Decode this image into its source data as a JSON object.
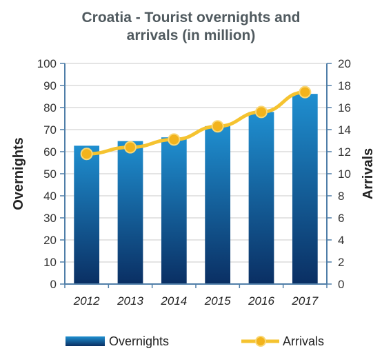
{
  "chart_data": {
    "type": "bar",
    "title_lines": [
      "Croatia - Tourist overnights and",
      "arrivals (in million)"
    ],
    "categories": [
      "2012",
      "2013",
      "2014",
      "2015",
      "2016",
      "2017"
    ],
    "series": [
      {
        "name": "Overnights",
        "type": "bar",
        "axis": "left",
        "values": [
          62.7,
          64.8,
          66.5,
          71.6,
          78.0,
          86.2
        ]
      },
      {
        "name": "Arrivals",
        "type": "line",
        "axis": "right",
        "values": [
          11.8,
          12.4,
          13.1,
          14.3,
          15.6,
          17.4
        ]
      }
    ],
    "ylabel": "Overnights",
    "ylabel_right": "Arrivals",
    "ylim": [
      0,
      100
    ],
    "ylim_right": [
      0,
      20
    ],
    "yticks": [
      "0",
      "10",
      "20",
      "30",
      "40",
      "50",
      "60",
      "70",
      "80",
      "90",
      "100"
    ],
    "yticks_right": [
      "0",
      "2",
      "4",
      "6",
      "8",
      "10",
      "12",
      "14",
      "16",
      "18",
      "20"
    ],
    "grid": true,
    "legend_position": "bottom",
    "colors": {
      "bar_top": "#1f8fd0",
      "bar_bottom": "#0a2f63",
      "line": "#f5c330",
      "marker": "#f2b31c",
      "axis": "#4f7ea8",
      "grid": "#c9c9c9"
    }
  }
}
